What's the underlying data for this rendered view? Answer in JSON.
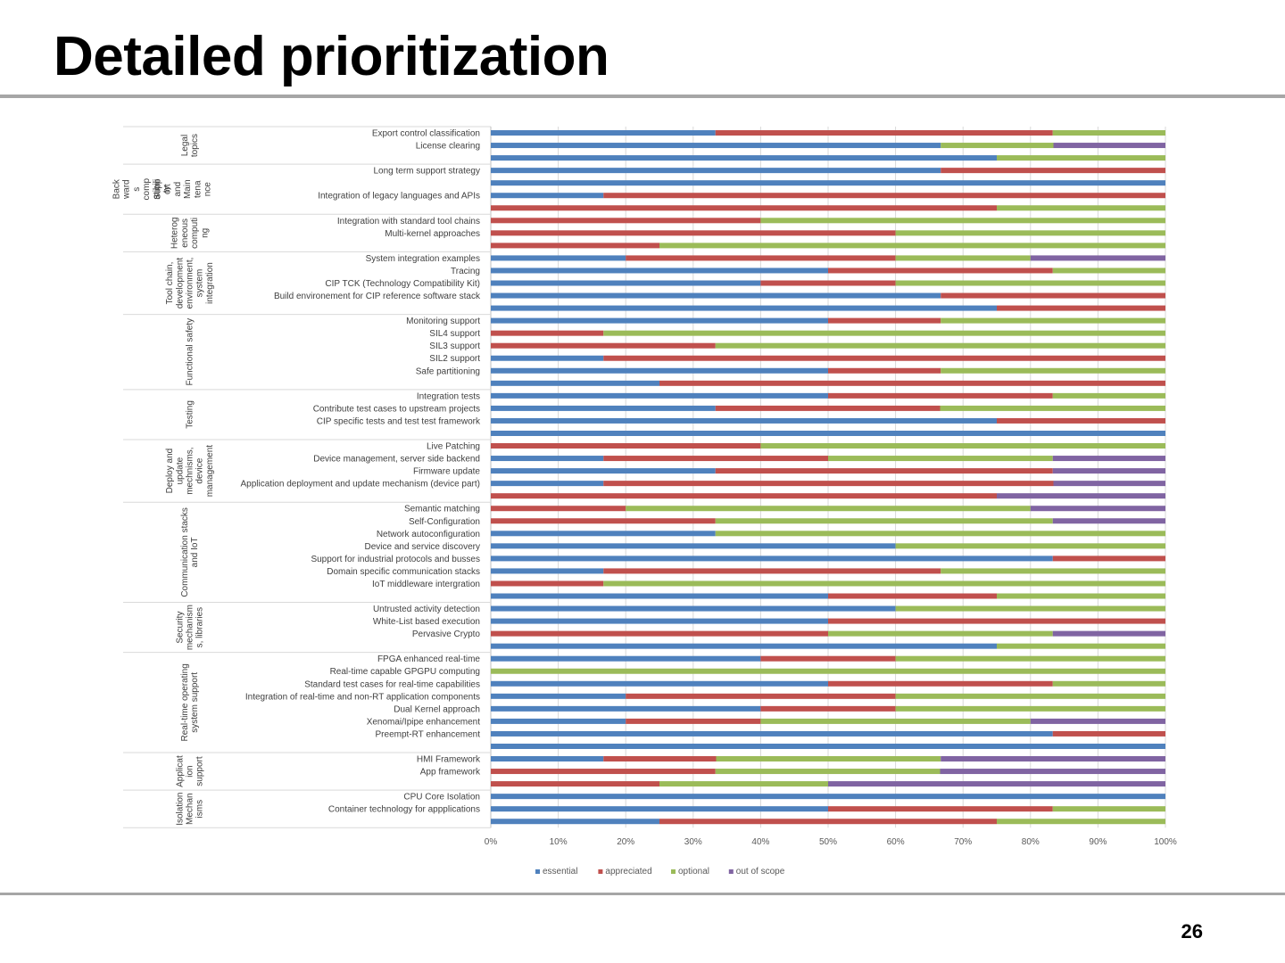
{
  "slide": {
    "title": "Detailed prioritization",
    "page_number": "26"
  },
  "colors": {
    "essential": "#4f81bd",
    "appreciated": "#c0504d",
    "optional": "#9bbb59",
    "out_of_scope": "#8064a2",
    "grid": "#d9d9d9",
    "axis_text": "#595959"
  },
  "chart_data": {
    "type": "bar",
    "orientation": "horizontal",
    "stacked": "percent",
    "xlim": [
      0,
      100
    ],
    "x_ticks": [
      "0%",
      "10%",
      "20%",
      "30%",
      "40%",
      "50%",
      "60%",
      "70%",
      "80%",
      "90%",
      "100%"
    ],
    "grid": true,
    "legend_position": "bottom",
    "series_names": [
      "essential",
      "appreciated",
      "optional",
      "out of scope"
    ],
    "groups": [
      {
        "name": [
          "Legal",
          "topics"
        ],
        "rows": [
          {
            "label": "Export control classification",
            "values": [
              33.3,
              50,
              16.7,
              0
            ]
          },
          {
            "label": "License clearing",
            "values": [
              66.7,
              0,
              16.7,
              16.6
            ]
          },
          {
            "label": "",
            "values": [
              75,
              0,
              25,
              0
            ]
          }
        ]
      },
      {
        "name": [
          "Back",
          "ward",
          "s",
          "comp",
          "atibili",
          "ty"
        ],
        "name2": [
          "Supp",
          "ort",
          "and",
          "Main",
          "tena",
          "nce"
        ],
        "rows": [
          {
            "label": "Long term support strategy",
            "values": [
              66.7,
              33.3,
              0,
              0
            ]
          },
          {
            "label": "",
            "values": [
              100,
              0,
              0,
              0
            ]
          },
          {
            "label": "Integration of legacy languages and APIs",
            "values": [
              16.7,
              83.3,
              0,
              0
            ]
          },
          {
            "label": "",
            "values": [
              0,
              75,
              25,
              0
            ]
          }
        ]
      },
      {
        "name": [
          "Heterog",
          "eneous",
          "computi",
          "ng"
        ],
        "rows": [
          {
            "label": "Integration with standard tool chains",
            "values": [
              0,
              40,
              60,
              0
            ]
          },
          {
            "label": "Multi-kernel approaches",
            "values": [
              0,
              60,
              40,
              0
            ]
          },
          {
            "label": "",
            "values": [
              0,
              25,
              75,
              0
            ]
          }
        ]
      },
      {
        "name": [
          "Tool chain,",
          "development",
          "environment,",
          "system",
          "integration"
        ],
        "rows": [
          {
            "label": "System integration examples",
            "values": [
              20,
              40,
              20,
              20
            ]
          },
          {
            "label": "Tracing",
            "values": [
              50,
              33.3,
              16.7,
              0
            ]
          },
          {
            "label": "CIP TCK (Technology Compatibility Kit)",
            "values": [
              40,
              20,
              40,
              0
            ]
          },
          {
            "label": "Build environement for CIP reference software stack",
            "values": [
              66.7,
              33.3,
              0,
              0
            ]
          },
          {
            "label": "",
            "values": [
              75,
              25,
              0,
              0
            ]
          }
        ]
      },
      {
        "name": [
          "Functional safety"
        ],
        "rows": [
          {
            "label": "Monitoring support",
            "values": [
              50,
              16.7,
              33.3,
              0
            ]
          },
          {
            "label": "SIL4 support",
            "values": [
              0,
              16.7,
              83.3,
              0
            ]
          },
          {
            "label": "SIL3 support",
            "values": [
              0,
              33.3,
              66.7,
              0
            ]
          },
          {
            "label": "SIL2 support",
            "values": [
              16.7,
              83.3,
              0,
              0
            ]
          },
          {
            "label": "Safe partitioning",
            "values": [
              50,
              16.7,
              33.3,
              0
            ]
          },
          {
            "label": "",
            "values": [
              25,
              75,
              0,
              0
            ]
          }
        ]
      },
      {
        "name": [
          "Testing"
        ],
        "rows": [
          {
            "label": "Integration tests",
            "values": [
              50,
              33.3,
              16.7,
              0
            ]
          },
          {
            "label": "Contribute test cases to upstream projects",
            "values": [
              33.3,
              33.3,
              33.4,
              0
            ]
          },
          {
            "label": "CIP specific tests and test test framework",
            "values": [
              75,
              25,
              0,
              0
            ]
          },
          {
            "label": "",
            "values": [
              100,
              0,
              0,
              0
            ]
          }
        ]
      },
      {
        "name": [
          "Deploy and",
          "update",
          "mechnisms,",
          "device",
          "management"
        ],
        "rows": [
          {
            "label": "Live Patching",
            "values": [
              0,
              40,
              60,
              0
            ]
          },
          {
            "label": "Device management, server side backend",
            "values": [
              16.7,
              33.3,
              33.3,
              16.7
            ]
          },
          {
            "label": "Firmware update",
            "values": [
              33.3,
              50,
              0,
              16.7
            ]
          },
          {
            "label": "Application deployment and update mechanism (device part)",
            "values": [
              16.7,
              66.7,
              0,
              16.6
            ]
          },
          {
            "label": "",
            "values": [
              0,
              75,
              0,
              25
            ]
          }
        ]
      },
      {
        "name": [
          "Communication stacks",
          "and IoT"
        ],
        "rows": [
          {
            "label": "Semantic matching",
            "values": [
              0,
              20,
              60,
              20
            ]
          },
          {
            "label": "Self-Configuration",
            "values": [
              0,
              33.3,
              50,
              16.7
            ]
          },
          {
            "label": "Network autoconfiguration",
            "values": [
              33.3,
              0,
              66.7,
              0
            ]
          },
          {
            "label": "Device and service discovery",
            "values": [
              60,
              0,
              40,
              0
            ]
          },
          {
            "label": "Support for industrial protocols and busses",
            "values": [
              83.3,
              16.7,
              0,
              0
            ]
          },
          {
            "label": "Domain specific communication  stacks",
            "values": [
              16.7,
              50,
              33.3,
              0
            ]
          },
          {
            "label": "IoT middleware intergration",
            "values": [
              0,
              16.7,
              83.3,
              0
            ]
          },
          {
            "label": "",
            "values": [
              50,
              25,
              25,
              0
            ]
          }
        ]
      },
      {
        "name": [
          "Security",
          "mechanism",
          "s, libraries"
        ],
        "rows": [
          {
            "label": "Untrusted activity detection",
            "values": [
              60,
              0,
              40,
              0
            ]
          },
          {
            "label": "White-List based execution",
            "values": [
              50,
              50,
              0,
              0
            ]
          },
          {
            "label": "Pervasive Crypto",
            "values": [
              0,
              50,
              33.3,
              16.7
            ]
          },
          {
            "label": "",
            "values": [
              75,
              0,
              25,
              0
            ]
          }
        ]
      },
      {
        "name": [
          "Real-time operating",
          "system support"
        ],
        "rows": [
          {
            "label": "FPGA enhanced real-time ",
            "values": [
              40,
              20,
              40,
              0
            ]
          },
          {
            "label": "Real-time capable GPGPU computing",
            "values": [
              0,
              0,
              100,
              0
            ]
          },
          {
            "label": "Standard test cases for real-time capabilities",
            "values": [
              50,
              33.3,
              16.7,
              0
            ]
          },
          {
            "label": "Integration of real-time and non-RT application components",
            "values": [
              20,
              40,
              40,
              0
            ]
          },
          {
            "label": "Dual Kernel approach",
            "values": [
              40,
              20,
              40,
              0
            ]
          },
          {
            "label": "Xenomai/Ipipe enhancement",
            "values": [
              20,
              20,
              40,
              20
            ]
          },
          {
            "label": "Preempt-RT enhancement",
            "values": [
              83.3,
              16.7,
              0,
              0
            ]
          },
          {
            "label": "",
            "values": [
              100,
              0,
              0,
              0
            ]
          }
        ]
      },
      {
        "name": [
          "Applicat",
          "ion",
          "support"
        ],
        "rows": [
          {
            "label": "HMI Framework",
            "values": [
              16.7,
              16.7,
              33.3,
              33.3
            ]
          },
          {
            "label": "App framework",
            "values": [
              0,
              33.3,
              33.3,
              33.4
            ]
          },
          {
            "label": "",
            "values": [
              0,
              25,
              25,
              50
            ]
          }
        ]
      },
      {
        "name": [
          "Isolation",
          "Mechan",
          "isms"
        ],
        "rows": [
          {
            "label": "CPU Core Isolation",
            "values": [
              100,
              0,
              0,
              0
            ]
          },
          {
            "label": "Container technology for appplications",
            "values": [
              50,
              33.3,
              16.7,
              0
            ]
          },
          {
            "label": "",
            "values": [
              25,
              50,
              25,
              0
            ]
          }
        ]
      }
    ]
  }
}
